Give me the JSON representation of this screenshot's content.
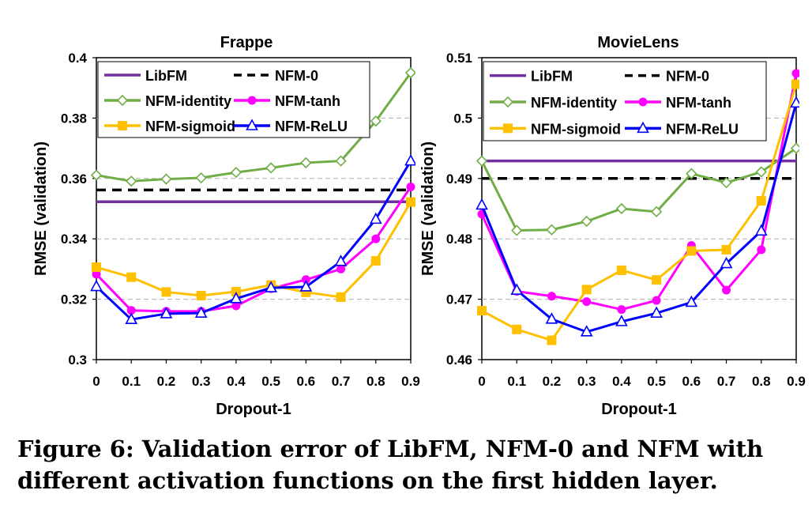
{
  "caption": {
    "line1": "Figure 6: Validation error of LibFM, NFM-0 and NFM with",
    "line2": "different activation functions on the first hidden layer."
  },
  "chart_data": [
    {
      "type": "line",
      "title": "Frappe",
      "xlabel": "Dropout-1",
      "ylabel": "RMSE (validation)",
      "x": [
        0,
        0.1,
        0.2,
        0.3,
        0.4,
        0.5,
        0.6,
        0.7,
        0.8,
        0.9
      ],
      "x_tick_labels": [
        "0",
        "0.1",
        "0.2",
        "0.3",
        "0.4",
        "0.5",
        "0.6",
        "0.7",
        "0.8",
        "0.9"
      ],
      "ylim": [
        0.3,
        0.4
      ],
      "y_ticks": [
        0.3,
        0.32,
        0.34,
        0.36,
        0.38,
        0.4
      ],
      "y_tick_labels": [
        "0.3",
        "0.32",
        "0.34",
        "0.36",
        "0.38",
        "0.4"
      ],
      "grid": "horizontal dashed",
      "legend_position": "top",
      "series": [
        {
          "name": "LibFM",
          "color": "#7030a0",
          "style": "solid",
          "marker": "none",
          "values": [
            0.3523,
            0.3523,
            0.3523,
            0.3523,
            0.3523,
            0.3523,
            0.3523,
            0.3523,
            0.3523,
            0.3523
          ]
        },
        {
          "name": "NFM-0",
          "color": "#000000",
          "style": "dashed",
          "marker": "none",
          "values": [
            0.3562,
            0.3562,
            0.3562,
            0.3562,
            0.3562,
            0.3562,
            0.3562,
            0.3562,
            0.3562,
            0.3562
          ]
        },
        {
          "name": "NFM-identity",
          "color": "#70ad47",
          "style": "solid",
          "marker": "diamond",
          "values": [
            0.3611,
            0.3591,
            0.3598,
            0.3602,
            0.362,
            0.3635,
            0.3652,
            0.3658,
            0.379,
            0.395
          ]
        },
        {
          "name": "NFM-tanh",
          "color": "#ff00ff",
          "style": "solid",
          "marker": "circle",
          "values": [
            0.3283,
            0.3163,
            0.316,
            0.316,
            0.3178,
            0.3235,
            0.3265,
            0.33,
            0.34,
            0.3572
          ]
        },
        {
          "name": "NFM-sigmoid",
          "color": "#ffc000",
          "style": "solid",
          "marker": "square",
          "values": [
            0.3306,
            0.3273,
            0.3224,
            0.3212,
            0.3225,
            0.3247,
            0.3223,
            0.3207,
            0.3327,
            0.3522
          ]
        },
        {
          "name": "NFM-ReLU",
          "color": "#0000ff",
          "style": "solid",
          "marker": "triangle",
          "values": [
            0.3242,
            0.3133,
            0.3152,
            0.3154,
            0.3202,
            0.3238,
            0.3241,
            0.3325,
            0.3465,
            0.3658
          ]
        }
      ]
    },
    {
      "type": "line",
      "title": "MovieLens",
      "xlabel": "Dropout-1",
      "ylabel": "RMSE (validation)",
      "x": [
        0,
        0.1,
        0.2,
        0.3,
        0.4,
        0.5,
        0.6,
        0.7,
        0.8,
        0.9
      ],
      "x_tick_labels": [
        "0",
        "0.1",
        "0.2",
        "0.3",
        "0.4",
        "0.5",
        "0.6",
        "0.7",
        "0.8",
        "0.9"
      ],
      "ylim": [
        0.46,
        0.51
      ],
      "y_ticks": [
        0.46,
        0.47,
        0.48,
        0.49,
        0.5,
        0.51
      ],
      "y_tick_labels": [
        "0.46",
        "0.47",
        "0.48",
        "0.49",
        "0.5",
        "0.51"
      ],
      "grid": "horizontal dashed",
      "legend_position": "top",
      "series": [
        {
          "name": "LibFM",
          "color": "#7030a0",
          "style": "solid",
          "marker": "none",
          "values": [
            0.4929,
            0.4929,
            0.4929,
            0.4929,
            0.4929,
            0.4929,
            0.4929,
            0.4929,
            0.4929,
            0.4929
          ]
        },
        {
          "name": "NFM-0",
          "color": "#000000",
          "style": "dashed",
          "marker": "none",
          "values": [
            0.49,
            0.49,
            0.49,
            0.49,
            0.49,
            0.49,
            0.49,
            0.49,
            0.49,
            0.49
          ]
        },
        {
          "name": "NFM-identity",
          "color": "#70ad47",
          "style": "solid",
          "marker": "diamond",
          "values": [
            0.4929,
            0.4814,
            0.4815,
            0.4829,
            0.485,
            0.4845,
            0.4908,
            0.4893,
            0.4911,
            0.495
          ]
        },
        {
          "name": "NFM-tanh",
          "color": "#ff00ff",
          "style": "solid",
          "marker": "circle",
          "values": [
            0.4841,
            0.4713,
            0.4705,
            0.4696,
            0.4683,
            0.4698,
            0.4789,
            0.4715,
            0.4782,
            0.5074
          ]
        },
        {
          "name": "NFM-sigmoid",
          "color": "#ffc000",
          "style": "solid",
          "marker": "square",
          "values": [
            0.4681,
            0.465,
            0.4632,
            0.4716,
            0.4748,
            0.4732,
            0.478,
            0.4782,
            0.4863,
            0.5056
          ]
        },
        {
          "name": "NFM-ReLU",
          "color": "#0000ff",
          "style": "solid",
          "marker": "triangle",
          "values": [
            0.4856,
            0.4715,
            0.4667,
            0.4646,
            0.4663,
            0.4677,
            0.4695,
            0.4759,
            0.4813,
            0.5025
          ]
        }
      ]
    }
  ]
}
